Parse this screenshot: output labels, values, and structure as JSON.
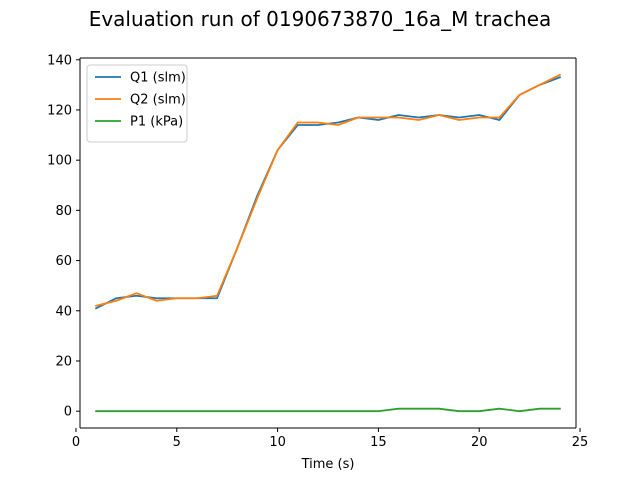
{
  "chart_data": {
    "type": "line",
    "title": "Evaluation run of 0190673870_16a_M trachea",
    "xlabel": "Time (s)",
    "ylabel": "",
    "xlim": [
      0.2,
      24.8
    ],
    "ylim": [
      -6.7,
      140.7
    ],
    "xticks": [
      0,
      5,
      10,
      15,
      20,
      25
    ],
    "yticks": [
      0,
      20,
      40,
      60,
      80,
      100,
      120,
      140
    ],
    "grid": false,
    "legend_position": "upper-left",
    "x": [
      1,
      2,
      3,
      4,
      5,
      6,
      7,
      8,
      9,
      10,
      11,
      12,
      13,
      14,
      15,
      16,
      17,
      18,
      19,
      20,
      21,
      22,
      23,
      24
    ],
    "series": [
      {
        "name": "Q1 (slm)",
        "color": "#1f77b4",
        "values": [
          41,
          45,
          46,
          45,
          45,
          45,
          45,
          65,
          86,
          104,
          114,
          114,
          115,
          117,
          116,
          118,
          117,
          118,
          117,
          118,
          116,
          126,
          130,
          133
        ]
      },
      {
        "name": "Q2 (slm)",
        "color": "#ff7f0e",
        "values": [
          42,
          44,
          47,
          44,
          45,
          45,
          46,
          65,
          85,
          104,
          115,
          115,
          114,
          117,
          117,
          117,
          116,
          118,
          116,
          117,
          117,
          126,
          130,
          134
        ]
      },
      {
        "name": "P1 (kPa)",
        "color": "#2ca02c",
        "values": [
          0,
          0,
          0,
          0,
          0,
          0,
          0,
          0,
          0,
          0,
          0,
          0,
          0,
          0,
          0,
          1,
          1,
          1,
          0,
          0,
          1,
          0,
          1,
          1
        ]
      }
    ]
  }
}
